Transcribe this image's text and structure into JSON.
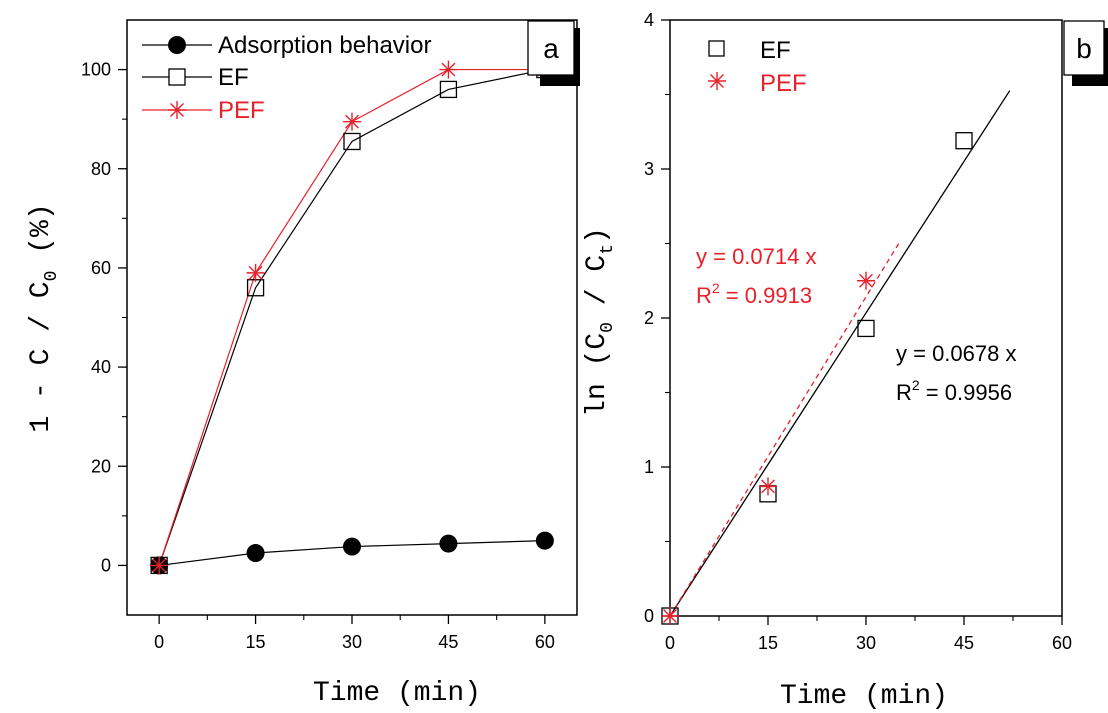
{
  "colors": {
    "black": "#000000",
    "red": "#e8202a"
  },
  "chart_data": [
    {
      "type": "line",
      "panel_label": "a",
      "xlabel": "Time (min)",
      "ylabel": "1 - C / C0 (%)",
      "ylabel_parts": {
        "main": "1 - C / C",
        "sub": "0",
        "suffix": " (%)"
      },
      "xlim": [
        -5,
        65
      ],
      "ylim": [
        -10,
        110
      ],
      "xticks": [
        0,
        15,
        30,
        45,
        60
      ],
      "yticks": [
        0,
        20,
        40,
        60,
        80,
        100
      ],
      "legend_position": "top-left",
      "series": [
        {
          "name": "Adsorption behavior",
          "marker": "filled-circle",
          "color": "#000000",
          "x": [
            0,
            15,
            30,
            45,
            60
          ],
          "y": [
            0,
            2.5,
            3.8,
            4.4,
            5.0
          ]
        },
        {
          "name": "EF",
          "marker": "open-square",
          "color": "#000000",
          "x": [
            0,
            15,
            30,
            45,
            60
          ],
          "y": [
            0,
            56,
            85.5,
            96,
            100
          ]
        },
        {
          "name": "PEF",
          "marker": "asterisk",
          "color": "#e8202a",
          "x": [
            0,
            15,
            30,
            45,
            60
          ],
          "y": [
            0,
            59,
            89.5,
            100,
            100
          ]
        }
      ]
    },
    {
      "type": "scatter",
      "panel_label": "b",
      "xlabel": "Time (min)",
      "ylabel": "ln (C0 / Ct)",
      "ylabel_parts": {
        "p1": "ln (C",
        "sub1": "0",
        "p2": " / C",
        "sub2": "t",
        "p3": ")"
      },
      "xlim": [
        0,
        60
      ],
      "ylim": [
        0,
        4
      ],
      "xticks": [
        0,
        15,
        30,
        45,
        60
      ],
      "yticks": [
        0,
        1,
        2,
        3,
        4
      ],
      "legend_position": "top-left",
      "series": [
        {
          "name": "EF",
          "marker": "open-square",
          "color": "#000000",
          "x": [
            0,
            15,
            30,
            45
          ],
          "y": [
            0,
            0.82,
            1.93,
            3.19
          ]
        },
        {
          "name": "PEF",
          "marker": "asterisk",
          "color": "#e8202a",
          "x": [
            0,
            15,
            30
          ],
          "y": [
            0,
            0.87,
            2.25
          ]
        }
      ],
      "fits": [
        {
          "series": "EF",
          "slope": 0.0678,
          "x_range": [
            0,
            52
          ],
          "style": "solid",
          "color": "#000000",
          "equation": "y = 0.0678 x",
          "r2_label": "R",
          "r2_sup": "2",
          "r2_value": " = 0.9956"
        },
        {
          "series": "PEF",
          "slope": 0.0714,
          "x_range": [
            0,
            35
          ],
          "style": "dashed",
          "color": "#e8202a",
          "equation": "y = 0.0714 x",
          "r2_label": "R",
          "r2_sup": "2",
          "r2_value": " = 0.9913"
        }
      ]
    }
  ]
}
